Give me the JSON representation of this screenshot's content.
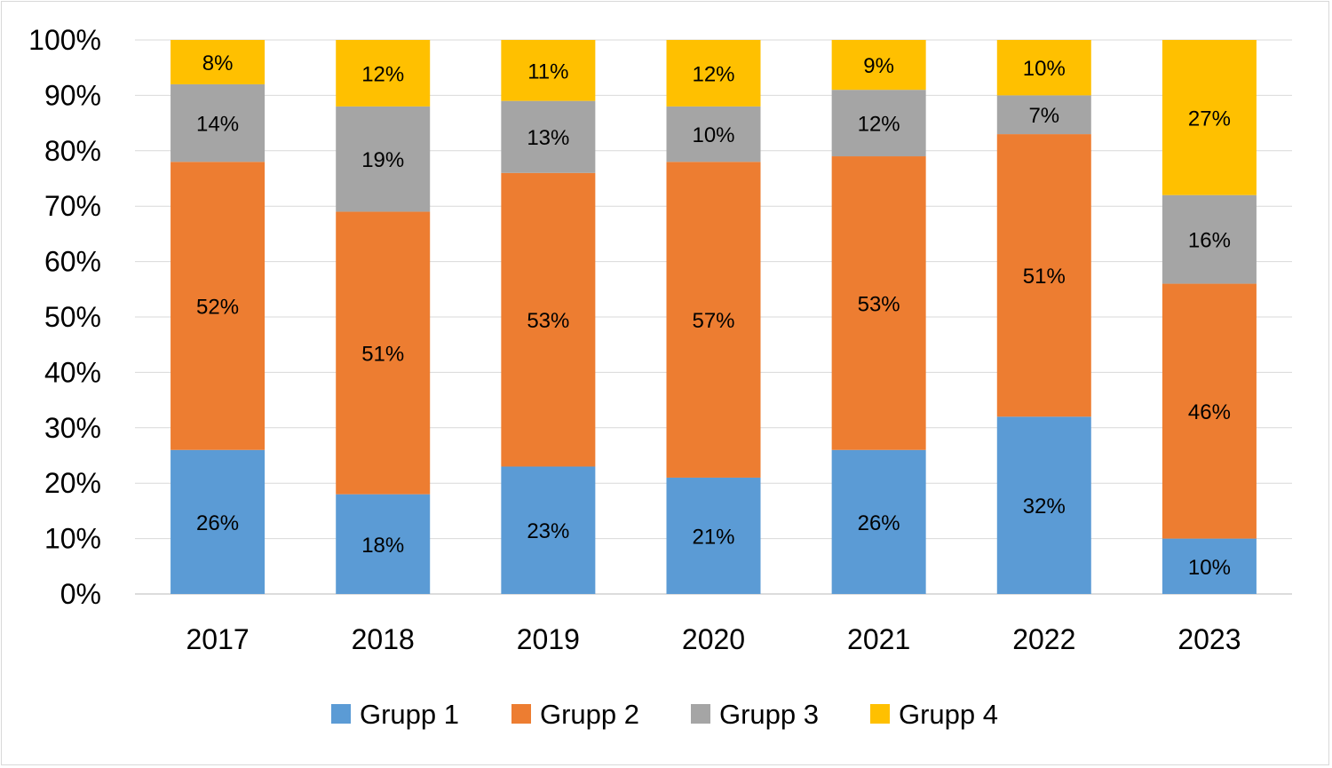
{
  "chart_data": {
    "type": "bar",
    "stacked": "percent",
    "title": "",
    "xlabel": "",
    "ylabel": "",
    "ylim": [
      0,
      100
    ],
    "y_ticks": [
      "0%",
      "10%",
      "20%",
      "30%",
      "40%",
      "50%",
      "60%",
      "70%",
      "80%",
      "90%",
      "100%"
    ],
    "grid": true,
    "legend_position": "bottom",
    "categories": [
      "2017",
      "2018",
      "2019",
      "2020",
      "2021",
      "2022",
      "2023"
    ],
    "series": [
      {
        "name": "Grupp 1",
        "color": "#5B9BD5",
        "values": [
          26,
          18,
          23,
          21,
          26,
          32,
          10
        ],
        "labels": [
          "26%",
          "18%",
          "23%",
          "21%",
          "26%",
          "32%",
          "10%"
        ]
      },
      {
        "name": "Grupp 2",
        "color": "#ED7D31",
        "values": [
          52,
          51,
          53,
          57,
          53,
          51,
          46
        ],
        "labels": [
          "52%",
          "51%",
          "53%",
          "57%",
          "53%",
          "51%",
          "46%"
        ]
      },
      {
        "name": "Grupp 3",
        "color": "#A5A5A5",
        "values": [
          14,
          19,
          13,
          10,
          12,
          7,
          16
        ],
        "labels": [
          "14%",
          "19%",
          "13%",
          "10%",
          "12%",
          "7%",
          "16%"
        ]
      },
      {
        "name": "Grupp 4",
        "color": "#FFC000",
        "values": [
          8,
          12,
          11,
          12,
          9,
          10,
          27
        ],
        "labels": [
          "8%",
          "12%",
          "11%",
          "12%",
          "9%",
          "10%",
          "27%"
        ]
      }
    ]
  }
}
